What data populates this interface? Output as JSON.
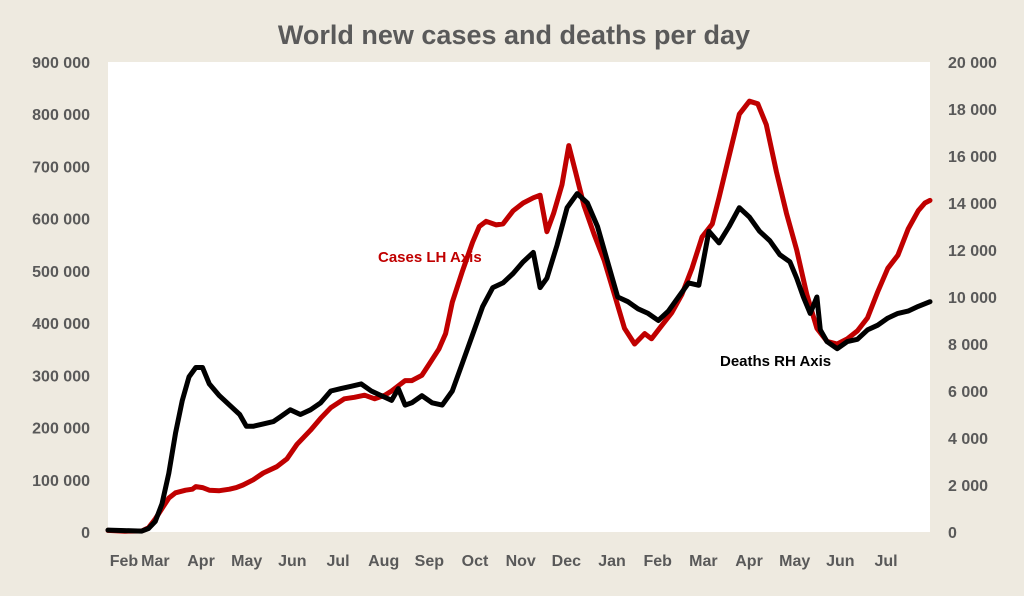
{
  "chart_data": {
    "type": "line",
    "title": "World new cases and deaths per day",
    "x_tick_labels": [
      "Feb",
      "Mar",
      "Apr",
      "May",
      "Jun",
      "Jul",
      "Aug",
      "Sep",
      "Oct",
      "Nov",
      "Dec",
      "Jan",
      "Feb",
      "Mar",
      "Apr",
      "May",
      "Jun",
      "Jul"
    ],
    "y_left": {
      "min": 0,
      "max": 900000,
      "ticks": [
        "0",
        "100 000",
        "200 000",
        "300 000",
        "400 000",
        "500 000",
        "600 000",
        "700 000",
        "800 000",
        "900 000"
      ]
    },
    "y_right": {
      "min": 0,
      "max": 20000,
      "ticks": [
        "0",
        "2 000",
        "4 000",
        "6 000",
        "8 000",
        "10 000",
        "12 000",
        "14 000",
        "16 000",
        "18 000",
        "20 000"
      ]
    },
    "grid": false,
    "series": [
      {
        "name": "Cases LH Axis",
        "axis": "left",
        "color": "#c00000",
        "points": [
          [
            0,
            3000
          ],
          [
            0.5,
            1500
          ],
          [
            1,
            2000
          ],
          [
            1.2,
            8000
          ],
          [
            1.4,
            25000
          ],
          [
            1.6,
            45000
          ],
          [
            1.8,
            65000
          ],
          [
            2.0,
            75000
          ],
          [
            2.3,
            80000
          ],
          [
            2.5,
            82000
          ],
          [
            2.6,
            87000
          ],
          [
            2.8,
            85000
          ],
          [
            3.0,
            80000
          ],
          [
            3.3,
            79000
          ],
          [
            3.6,
            82000
          ],
          [
            3.8,
            85000
          ],
          [
            4.0,
            90000
          ],
          [
            4.3,
            100000
          ],
          [
            4.6,
            113000
          ],
          [
            5.0,
            125000
          ],
          [
            5.3,
            140000
          ],
          [
            5.6,
            168000
          ],
          [
            6.0,
            195000
          ],
          [
            6.3,
            218000
          ],
          [
            6.6,
            238000
          ],
          [
            7.0,
            255000
          ],
          [
            7.3,
            258000
          ],
          [
            7.6,
            262000
          ],
          [
            7.9,
            255000
          ],
          [
            8.2,
            262000
          ],
          [
            8.4,
            270000
          ],
          [
            8.6,
            280000
          ],
          [
            8.8,
            290000
          ],
          [
            9.0,
            290000
          ],
          [
            9.3,
            300000
          ],
          [
            9.5,
            320000
          ],
          [
            9.8,
            350000
          ],
          [
            10.0,
            380000
          ],
          [
            10.2,
            440000
          ],
          [
            10.5,
            500000
          ],
          [
            10.8,
            555000
          ],
          [
            11.0,
            585000
          ],
          [
            11.2,
            595000
          ],
          [
            11.5,
            588000
          ],
          [
            11.7,
            590000
          ],
          [
            12.0,
            615000
          ],
          [
            12.3,
            630000
          ],
          [
            12.6,
            640000
          ],
          [
            12.8,
            645000
          ],
          [
            13.0,
            575000
          ],
          [
            13.2,
            610000
          ],
          [
            13.45,
            665000
          ],
          [
            13.65,
            740000
          ],
          [
            13.85,
            690000
          ],
          [
            14.1,
            625000
          ],
          [
            14.4,
            570000
          ],
          [
            14.7,
            520000
          ],
          [
            15.0,
            455000
          ],
          [
            15.3,
            390000
          ],
          [
            15.6,
            360000
          ],
          [
            15.9,
            380000
          ],
          [
            16.1,
            370000
          ],
          [
            16.4,
            395000
          ],
          [
            16.7,
            420000
          ],
          [
            17.0,
            455000
          ],
          [
            17.3,
            505000
          ],
          [
            17.6,
            565000
          ],
          [
            17.9,
            590000
          ],
          [
            18.1,
            640000
          ],
          [
            18.4,
            720000
          ],
          [
            18.7,
            800000
          ],
          [
            19.0,
            825000
          ],
          [
            19.25,
            820000
          ],
          [
            19.5,
            780000
          ],
          [
            19.8,
            690000
          ],
          [
            20.1,
            610000
          ],
          [
            20.4,
            540000
          ],
          [
            20.7,
            455000
          ],
          [
            21.0,
            390000
          ],
          [
            21.3,
            365000
          ],
          [
            21.6,
            360000
          ],
          [
            21.9,
            370000
          ],
          [
            22.2,
            385000
          ],
          [
            22.5,
            410000
          ],
          [
            22.8,
            460000
          ],
          [
            23.1,
            505000
          ],
          [
            23.4,
            530000
          ],
          [
            23.7,
            580000
          ],
          [
            24.0,
            615000
          ],
          [
            24.2,
            630000
          ],
          [
            24.35,
            635000
          ]
        ]
      },
      {
        "name": "Deaths RH Axis",
        "axis": "right",
        "color": "#000000",
        "points": [
          [
            0,
            80
          ],
          [
            0.5,
            60
          ],
          [
            1,
            40
          ],
          [
            1.2,
            150
          ],
          [
            1.4,
            450
          ],
          [
            1.6,
            1200
          ],
          [
            1.8,
            2500
          ],
          [
            2.0,
            4200
          ],
          [
            2.2,
            5600
          ],
          [
            2.4,
            6600
          ],
          [
            2.6,
            7000
          ],
          [
            2.8,
            7000
          ],
          [
            3.0,
            6300
          ],
          [
            3.3,
            5800
          ],
          [
            3.6,
            5400
          ],
          [
            3.9,
            5000
          ],
          [
            4.1,
            4500
          ],
          [
            4.3,
            4500
          ],
          [
            4.6,
            4600
          ],
          [
            4.9,
            4700
          ],
          [
            5.1,
            4900
          ],
          [
            5.4,
            5200
          ],
          [
            5.7,
            5000
          ],
          [
            6.0,
            5200
          ],
          [
            6.3,
            5500
          ],
          [
            6.6,
            6000
          ],
          [
            6.9,
            6100
          ],
          [
            7.2,
            6200
          ],
          [
            7.5,
            6300
          ],
          [
            7.8,
            6000
          ],
          [
            8.1,
            5800
          ],
          [
            8.4,
            5600
          ],
          [
            8.6,
            6100
          ],
          [
            8.8,
            5400
          ],
          [
            9.0,
            5500
          ],
          [
            9.3,
            5800
          ],
          [
            9.6,
            5500
          ],
          [
            9.9,
            5400
          ],
          [
            10.2,
            6000
          ],
          [
            10.5,
            7200
          ],
          [
            10.8,
            8400
          ],
          [
            11.1,
            9600
          ],
          [
            11.4,
            10400
          ],
          [
            11.7,
            10600
          ],
          [
            12.0,
            11000
          ],
          [
            12.3,
            11500
          ],
          [
            12.6,
            11900
          ],
          [
            12.8,
            10400
          ],
          [
            13.0,
            10800
          ],
          [
            13.3,
            12200
          ],
          [
            13.6,
            13800
          ],
          [
            13.9,
            14400
          ],
          [
            14.2,
            14000
          ],
          [
            14.5,
            13000
          ],
          [
            14.8,
            11500
          ],
          [
            15.1,
            10000
          ],
          [
            15.4,
            9800
          ],
          [
            15.7,
            9500
          ],
          [
            16.0,
            9300
          ],
          [
            16.3,
            9000
          ],
          [
            16.6,
            9400
          ],
          [
            16.9,
            10000
          ],
          [
            17.2,
            10600
          ],
          [
            17.5,
            10500
          ],
          [
            17.8,
            12800
          ],
          [
            18.1,
            12300
          ],
          [
            18.4,
            13000
          ],
          [
            18.7,
            13800
          ],
          [
            19.0,
            13400
          ],
          [
            19.3,
            12800
          ],
          [
            19.6,
            12400
          ],
          [
            19.9,
            11800
          ],
          [
            20.2,
            11500
          ],
          [
            20.4,
            10800
          ],
          [
            20.6,
            10000
          ],
          [
            20.8,
            9300
          ],
          [
            21.0,
            10000
          ],
          [
            21.1,
            8600
          ],
          [
            21.3,
            8100
          ],
          [
            21.6,
            7800
          ],
          [
            21.9,
            8100
          ],
          [
            22.2,
            8200
          ],
          [
            22.5,
            8600
          ],
          [
            22.8,
            8800
          ],
          [
            23.1,
            9100
          ],
          [
            23.4,
            9300
          ],
          [
            23.7,
            9400
          ],
          [
            24.0,
            9600
          ],
          [
            24.35,
            9800
          ]
        ]
      }
    ],
    "annotations": [
      {
        "text": "Cases LH Axis",
        "color": "#c00000"
      },
      {
        "text": "Deaths RH Axis",
        "color": "#000000"
      }
    ]
  }
}
